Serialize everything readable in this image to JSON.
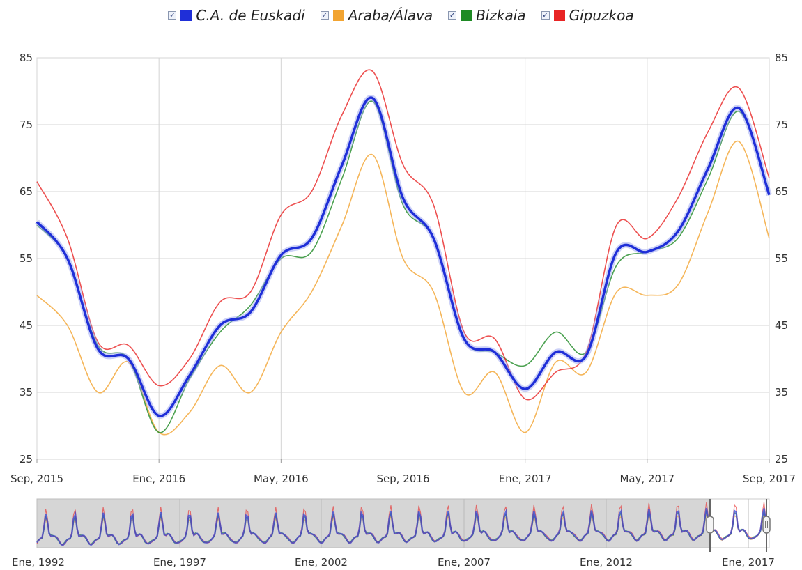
{
  "legend": [
    {
      "label": "C.A. de Euskadi",
      "color": "#1f2fd8",
      "checked": "✓"
    },
    {
      "label": "Araba/Álava",
      "color": "#f2a431",
      "checked": "✓"
    },
    {
      "label": "Bizkaia",
      "color": "#1e8a24",
      "checked": "✓"
    },
    {
      "label": "Gipuzkoa",
      "color": "#e82424",
      "checked": "✓"
    }
  ],
  "chart_data": {
    "type": "line",
    "ylim": [
      25,
      85
    ],
    "yticks": [
      25,
      35,
      45,
      55,
      65,
      75,
      85
    ],
    "x": [
      0,
      1,
      2,
      3,
      4,
      5,
      6,
      7,
      8,
      9,
      10,
      11,
      12,
      13,
      14,
      15,
      16,
      17,
      18,
      19,
      20,
      21,
      22,
      23,
      24
    ],
    "xticks": [
      {
        "pos": 0,
        "label": "Sep, 2015"
      },
      {
        "pos": 4,
        "label": "Ene, 2016"
      },
      {
        "pos": 8,
        "label": "May, 2016"
      },
      {
        "pos": 12,
        "label": "Sep, 2016"
      },
      {
        "pos": 16,
        "label": "Ene, 2017"
      },
      {
        "pos": 20,
        "label": "May, 2017"
      },
      {
        "pos": 24,
        "label": "Sep, 2017"
      }
    ],
    "series": [
      {
        "name": "Araba/Álava",
        "color": "#f2a431",
        "values": [
          49.5,
          45,
          35,
          39.5,
          29,
          32,
          39,
          35,
          44,
          50,
          60,
          70.5,
          55,
          50,
          35,
          38,
          29,
          39.5,
          38,
          50,
          49.5,
          51,
          62,
          72.5,
          58
        ]
      },
      {
        "name": "Bizkaia",
        "color": "#1e8a24",
        "values": [
          60,
          55,
          42,
          40,
          29,
          37,
          44,
          48,
          55,
          56,
          67,
          78.5,
          63,
          58,
          43,
          41,
          39,
          44,
          41,
          54,
          56,
          58,
          67,
          77,
          65
        ]
      },
      {
        "name": "Gipuzkoa",
        "color": "#e82424",
        "values": [
          66.5,
          58,
          42.5,
          42,
          36,
          40,
          48.5,
          50,
          61.5,
          65,
          76.5,
          83,
          69,
          63,
          44,
          43,
          34,
          38,
          41,
          60,
          58,
          64,
          74,
          80.5,
          67
        ]
      },
      {
        "name": "C.A. de Euskadi",
        "color": "#1f2fd8",
        "values": [
          60.5,
          55,
          41.5,
          40,
          31.5,
          37.5,
          45,
          47,
          55.5,
          58,
          69,
          79,
          64,
          58,
          43,
          41,
          35.5,
          41,
          40.5,
          56,
          56,
          59,
          68.5,
          77.5,
          64.5
        ]
      }
    ],
    "navigator": {
      "type": "area",
      "labels": [
        "Ene, 1992",
        "Ene, 1997",
        "Ene, 2002",
        "Ene, 2007",
        "Ene, 2012",
        "Ene, 2017"
      ]
    }
  }
}
